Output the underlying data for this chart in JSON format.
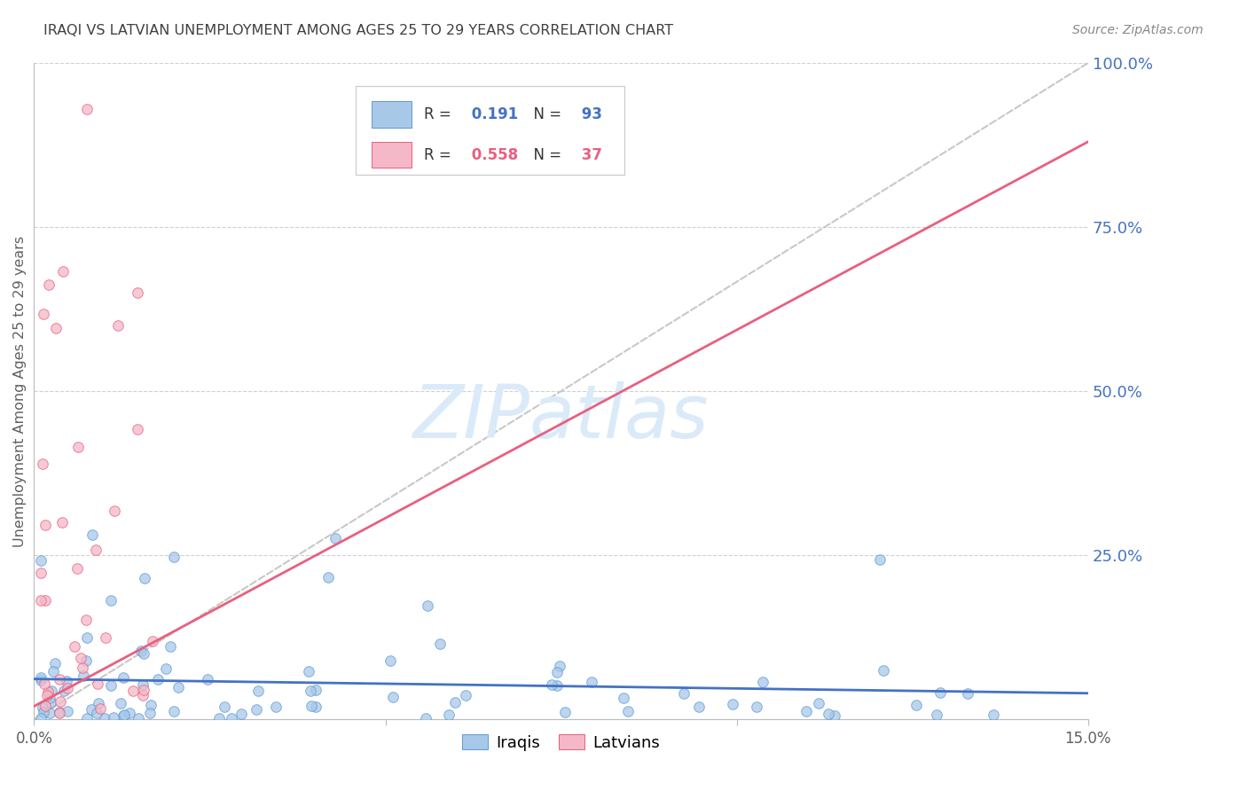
{
  "title": "IRAQI VS LATVIAN UNEMPLOYMENT AMONG AGES 25 TO 29 YEARS CORRELATION CHART",
  "source": "Source: ZipAtlas.com",
  "ylabel": "Unemployment Among Ages 25 to 29 years",
  "xlim": [
    0.0,
    0.15
  ],
  "ylim": [
    0.0,
    1.0
  ],
  "yticks": [
    0.0,
    0.25,
    0.5,
    0.75,
    1.0
  ],
  "ytick_labels_right": [
    "",
    "25.0%",
    "50.0%",
    "75.0%",
    "100.0%"
  ],
  "xticks": [
    0.0,
    0.05,
    0.1,
    0.15
  ],
  "xtick_labels": [
    "0.0%",
    "",
    "",
    "15.0%"
  ],
  "iraqi_color_fill": "#a8c8e8",
  "iraqi_color_edge": "#5b9bd5",
  "latvian_color_fill": "#f4b8c8",
  "latvian_color_edge": "#e8607a",
  "trendline_iraqi_color": "#4472c4",
  "trendline_latvian_color": "#e86080",
  "trendline_ref_color": "#c8c8c8",
  "R_iraqi": 0.191,
  "N_iraqi": 93,
  "R_latvian": 0.558,
  "N_latvian": 37,
  "watermark": "ZIPatlas",
  "background_color": "#ffffff",
  "grid_color": "#d0d0d0",
  "title_color": "#404040",
  "axis_label_color": "#606060",
  "right_tick_color": "#4472c4"
}
